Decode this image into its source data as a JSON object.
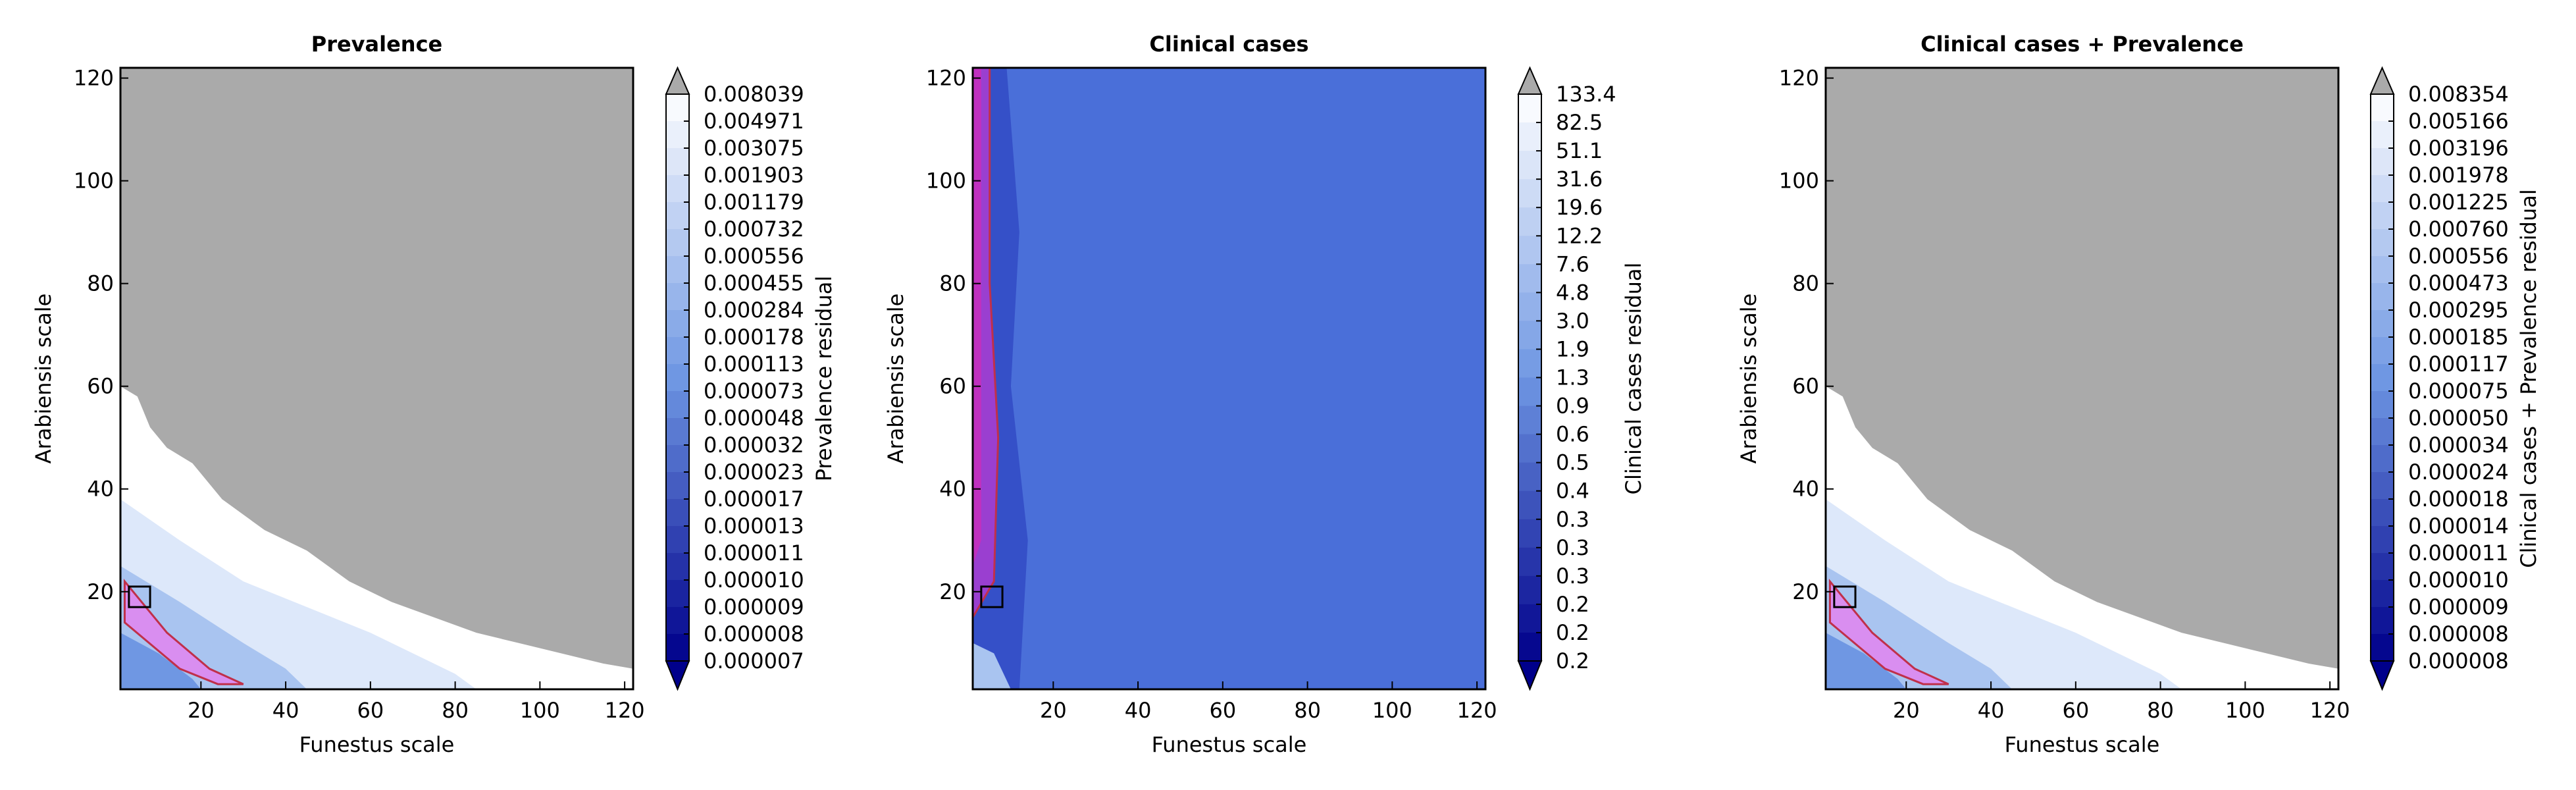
{
  "chart_data": [
    {
      "type": "contour",
      "title": "Prevalence",
      "x_label": "Funestus scale",
      "y_label": "Arabiensis scale",
      "xlim": [
        1,
        122
      ],
      "ylim": [
        1,
        122
      ],
      "xticks": [
        20,
        40,
        60,
        80,
        100,
        120
      ],
      "yticks": [
        20,
        40,
        60,
        80,
        100,
        120
      ],
      "over_color": "#aaaaaa",
      "colors": [
        "#ffffff",
        "#6f97e3",
        "#00008b"
      ],
      "colorbar": {
        "label": "Prevalence residual",
        "ticks": [
          "0.008039",
          "0.004971",
          "0.003075",
          "0.001903",
          "0.001179",
          "0.000732",
          "0.000556",
          "0.000455",
          "0.000284",
          "0.000178",
          "0.000113",
          "0.000073",
          "0.000048",
          "0.000032",
          "0.000023",
          "0.000017",
          "0.000013",
          "0.000011",
          "0.000010",
          "0.000009",
          "0.000008",
          "0.000007"
        ]
      }
    },
    {
      "type": "contour",
      "title": "Clinical cases",
      "x_label": "Funestus scale",
      "y_label": "Arabiensis scale",
      "xlim": [
        1,
        122
      ],
      "ylim": [
        1,
        122
      ],
      "xticks": [
        20,
        40,
        60,
        80,
        100,
        120
      ],
      "yticks": [
        20,
        40,
        60,
        80,
        100,
        120
      ],
      "over_color": "#aaaaaa",
      "colors": [
        "#ffffff",
        "#6f97e3",
        "#00008b"
      ],
      "colorbar": {
        "label": "Clinical cases residual",
        "ticks": [
          "133.4",
          "82.5",
          "51.1",
          "31.6",
          "19.6",
          "12.2",
          "7.6",
          "4.8",
          "3.0",
          "1.9",
          "1.3",
          "0.9",
          "0.6",
          "0.5",
          "0.4",
          "0.3",
          "0.3",
          "0.3",
          "0.2",
          "0.2",
          "0.2"
        ]
      }
    },
    {
      "type": "contour",
      "title": "Clinical cases + Prevalence",
      "x_label": "Funestus scale",
      "y_label": "Arabiensis scale",
      "xlim": [
        1,
        122
      ],
      "ylim": [
        1,
        122
      ],
      "xticks": [
        20,
        40,
        60,
        80,
        100,
        120
      ],
      "yticks": [
        20,
        40,
        60,
        80,
        100,
        120
      ],
      "over_color": "#aaaaaa",
      "colors": [
        "#ffffff",
        "#6f97e3",
        "#00008b"
      ],
      "colorbar": {
        "label": "Clinical cases + Prevalence residual",
        "ticks": [
          "0.008354",
          "0.005166",
          "0.003196",
          "0.001978",
          "0.001225",
          "0.000760",
          "0.000556",
          "0.000473",
          "0.000295",
          "0.000185",
          "0.000117",
          "0.000075",
          "0.000050",
          "0.000034",
          "0.000024",
          "0.000018",
          "0.000014",
          "0.000011",
          "0.000010",
          "0.000009",
          "0.000008",
          "0.000008"
        ]
      }
    }
  ]
}
